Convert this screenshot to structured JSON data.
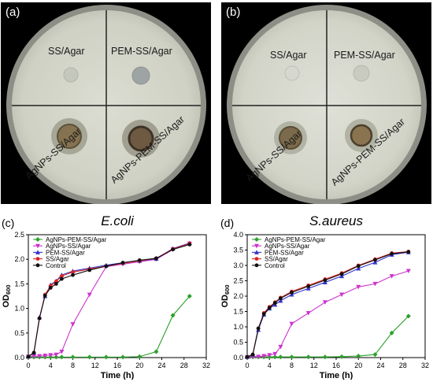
{
  "photos": {
    "a": {
      "label": "(a)",
      "quadrants": {
        "tl": "SS/Agar",
        "tr": "PEM-SS/Agar",
        "bl": "AgNPs-SS/Agar",
        "br": "AgNPs-PEM-SS/Agar"
      }
    },
    "b": {
      "label": "(b)",
      "quadrants": {
        "tl": "SS/Agar",
        "tr": "PEM-SS/Agar",
        "bl": "AgNPs-SS/Agar",
        "br": "AgNPs-PEM-SS/Agar"
      }
    }
  },
  "chart_data": [
    {
      "panel_label": "(c)",
      "title": "E.coli",
      "type": "line",
      "xlabel": "Time (h)",
      "ylabel": "OD600",
      "xlim": [
        0,
        32
      ],
      "ylim": [
        0,
        2.5
      ],
      "xticks": [
        0,
        4,
        8,
        12,
        16,
        20,
        24,
        28,
        32
      ],
      "yticks": [
        0.0,
        0.5,
        1.0,
        1.5,
        2.0,
        2.5
      ],
      "ytick_labels": [
        "0.0",
        "0.5",
        "1.0",
        "1.5",
        "2.0",
        "2.5"
      ],
      "legend_position": "top-left",
      "series": [
        {
          "name": "AgNPs-PEM-SS/Agar",
          "color": "#2ca02c",
          "marker": "diamond",
          "x": [
            0,
            1,
            2,
            3,
            4,
            5,
            6,
            8,
            11,
            14,
            17,
            20,
            23,
            26,
            29
          ],
          "y": [
            0.01,
            0.01,
            0.01,
            0.01,
            0.01,
            0.01,
            0.01,
            0.01,
            0.01,
            0.01,
            0.01,
            0.02,
            0.12,
            0.86,
            1.25
          ]
        },
        {
          "name": "AgNPs-SS/Agar",
          "color": "#cc33cc",
          "marker": "triangle-down",
          "x": [
            0,
            1,
            2,
            3,
            4,
            5,
            6,
            8,
            11,
            14,
            17,
            20,
            23,
            26,
            29
          ],
          "y": [
            0.02,
            0.03,
            0.03,
            0.04,
            0.05,
            0.06,
            0.12,
            0.68,
            1.28,
            1.85,
            1.9,
            1.95,
            2.0,
            2.2,
            2.32
          ]
        },
        {
          "name": "PEM-SS/Agar",
          "color": "#3333cc",
          "marker": "triangle-up",
          "x": [
            0,
            1,
            2,
            3,
            4,
            5,
            6,
            8,
            11,
            14,
            17,
            20,
            23,
            26,
            29
          ],
          "y": [
            0.02,
            0.1,
            0.82,
            1.25,
            1.48,
            1.56,
            1.68,
            1.76,
            1.82,
            1.88,
            1.93,
            1.97,
            2.01,
            2.22,
            2.33
          ]
        },
        {
          "name": "SS/Agar",
          "color": "#dd2222",
          "marker": "circle",
          "x": [
            0,
            1,
            2,
            3,
            4,
            5,
            6,
            8,
            11,
            14,
            17,
            20,
            23,
            26,
            29
          ],
          "y": [
            0.02,
            0.1,
            0.8,
            1.28,
            1.46,
            1.55,
            1.66,
            1.74,
            1.8,
            1.86,
            1.92,
            1.97,
            2.02,
            2.21,
            2.32
          ]
        },
        {
          "name": "Control",
          "color": "#111111",
          "marker": "circle",
          "x": [
            0,
            1,
            2,
            3,
            4,
            5,
            6,
            8,
            11,
            14,
            17,
            20,
            23,
            26,
            29
          ],
          "y": [
            0.02,
            0.1,
            0.8,
            1.26,
            1.42,
            1.5,
            1.6,
            1.68,
            1.78,
            1.86,
            1.93,
            1.98,
            2.02,
            2.2,
            2.3
          ]
        }
      ]
    },
    {
      "panel_label": "(d)",
      "title": "S.aureus",
      "type": "line",
      "xlabel": "Time (h)",
      "ylabel": "OD600",
      "xlim": [
        0,
        32
      ],
      "ylim": [
        0,
        4.0
      ],
      "xticks": [
        0,
        4,
        8,
        12,
        16,
        20,
        24,
        28,
        32
      ],
      "yticks": [
        0.0,
        0.5,
        1.0,
        1.5,
        2.0,
        2.5,
        3.0,
        3.5,
        4.0
      ],
      "ytick_labels": [
        "0.0",
        "0.5",
        "1.0",
        "1.5",
        "2.0",
        "2.5",
        "3.0",
        "3.5",
        "4.0"
      ],
      "legend_position": "top-left",
      "series": [
        {
          "name": "AgNPs-PEM-SS/Agar",
          "color": "#2ca02c",
          "marker": "diamond",
          "x": [
            0,
            1,
            2,
            3,
            4,
            5,
            6,
            8,
            11,
            14,
            17,
            20,
            23,
            26,
            29
          ],
          "y": [
            0.02,
            0.02,
            0.02,
            0.02,
            0.02,
            0.02,
            0.02,
            0.02,
            0.02,
            0.02,
            0.03,
            0.05,
            0.1,
            0.8,
            1.35
          ]
        },
        {
          "name": "AgNPs-SS/Agar",
          "color": "#cc33cc",
          "marker": "triangle-down",
          "x": [
            0,
            1,
            2,
            3,
            4,
            5,
            6,
            8,
            11,
            14,
            17,
            20,
            23,
            26,
            29
          ],
          "y": [
            0.02,
            0.03,
            0.03,
            0.05,
            0.08,
            0.12,
            0.35,
            1.1,
            1.45,
            1.8,
            2.05,
            2.3,
            2.4,
            2.65,
            2.82
          ]
        },
        {
          "name": "PEM-SS/Agar",
          "color": "#3333cc",
          "marker": "triangle-up",
          "x": [
            0,
            1,
            2,
            3,
            4,
            5,
            6,
            8,
            11,
            14,
            17,
            20,
            23,
            26,
            29
          ],
          "y": [
            0.02,
            0.1,
            0.9,
            1.4,
            1.6,
            1.72,
            1.85,
            2.05,
            2.25,
            2.45,
            2.65,
            2.9,
            3.1,
            3.35,
            3.43
          ]
        },
        {
          "name": "SS/Agar",
          "color": "#dd2222",
          "marker": "circle",
          "x": [
            0,
            1,
            2,
            3,
            4,
            5,
            6,
            8,
            11,
            14,
            17,
            20,
            23,
            26,
            29
          ],
          "y": [
            0.02,
            0.1,
            0.95,
            1.45,
            1.65,
            1.8,
            1.95,
            2.15,
            2.35,
            2.55,
            2.75,
            3.0,
            3.2,
            3.4,
            3.45
          ]
        },
        {
          "name": "Control",
          "color": "#111111",
          "marker": "circle",
          "x": [
            0,
            1,
            2,
            3,
            4,
            5,
            6,
            8,
            11,
            14,
            17,
            20,
            23,
            26,
            29
          ],
          "y": [
            0.02,
            0.1,
            0.95,
            1.42,
            1.62,
            1.78,
            1.93,
            2.12,
            2.32,
            2.52,
            2.72,
            2.98,
            3.18,
            3.38,
            3.44
          ]
        }
      ]
    }
  ]
}
